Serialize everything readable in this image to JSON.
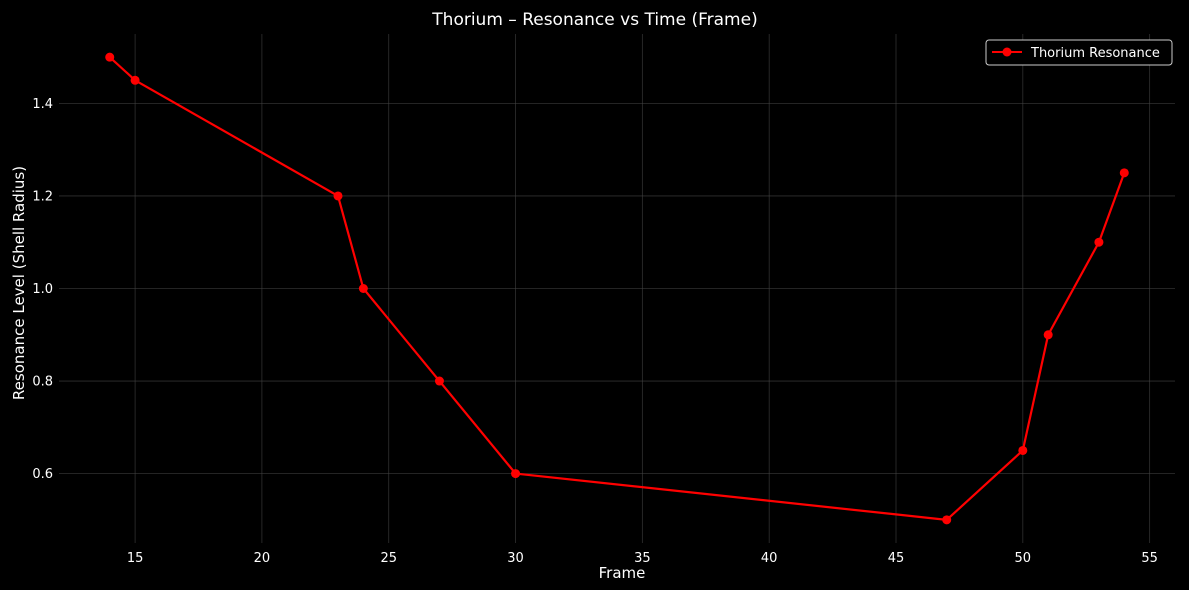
{
  "chart_data": {
    "type": "line",
    "title": "Thorium – Resonance vs Time (Frame)",
    "xlabel": "Frame",
    "ylabel": "Resonance Level (Shell Radius)",
    "xlim": [
      12,
      56
    ],
    "ylim": [
      0.45,
      1.55
    ],
    "xticks": [
      15,
      20,
      25,
      30,
      35,
      40,
      45,
      50,
      55
    ],
    "yticks": [
      0.6,
      0.8,
      1.0,
      1.2,
      1.4
    ],
    "grid": true,
    "legend_position": "top-right",
    "series": [
      {
        "name": "Thorium Resonance",
        "color": "#ff0000",
        "marker": "circle",
        "x": [
          14,
          15,
          23,
          24,
          27,
          30,
          47,
          50,
          51,
          53,
          54
        ],
        "y": [
          1.5,
          1.45,
          1.2,
          1.0,
          0.8,
          0.6,
          0.5,
          0.65,
          0.9,
          1.1,
          1.25
        ]
      }
    ],
    "colors": {
      "background": "#000000",
      "text": "#ffffff",
      "grid": "#444444"
    }
  }
}
